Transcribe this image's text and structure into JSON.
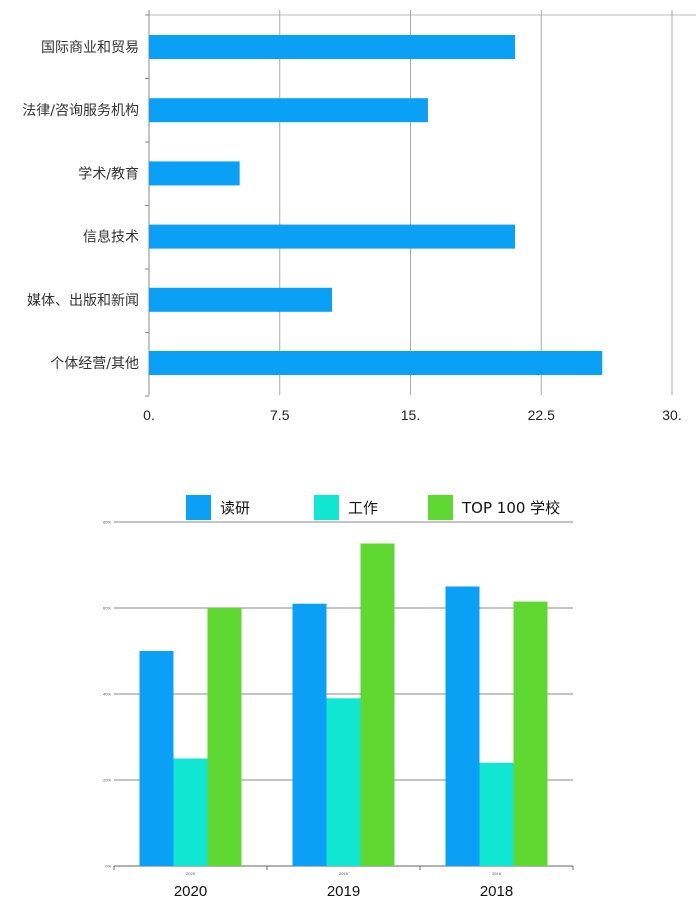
{
  "chart_data": [
    {
      "type": "bar",
      "orientation": "horizontal",
      "categories": [
        "国际商业和贸易",
        "法律/咨询服务机构",
        "学术/教育",
        "信息技术",
        "媒体、出版和新闻",
        "个体经营/其他"
      ],
      "values": [
        21,
        16,
        5.2,
        21,
        10.5,
        26
      ],
      "x_ticks": [
        "0.",
        "7.5",
        "15.",
        "22.5",
        "30."
      ],
      "xlim": [
        0,
        30
      ],
      "grid": "vertical",
      "bar_color": "#0aa0f5"
    },
    {
      "type": "bar",
      "categories": [
        "2020",
        "2019",
        "2018"
      ],
      "category_small_labels": [
        "2020",
        "2019",
        "2018"
      ],
      "series": [
        {
          "name": "读研",
          "values": [
            50,
            61,
            65
          ],
          "color": "#0aa0f5"
        },
        {
          "name": "工作",
          "values": [
            25,
            39,
            24
          ],
          "color": "#10e6d2"
        },
        {
          "name": "TOP 100 学校",
          "values": [
            60,
            75,
            61.5
          ],
          "color": "#5fd932"
        }
      ],
      "y_ticks": [
        "0%",
        "20%",
        "40%",
        "60%",
        "80%"
      ],
      "ylim": [
        0,
        80
      ],
      "legend": "top",
      "grid": "horizontal"
    }
  ]
}
